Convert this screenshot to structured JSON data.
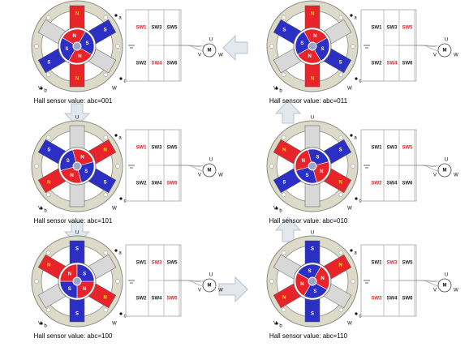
{
  "labels": {
    "phases": [
      "U",
      "V",
      "W"
    ],
    "halls": [
      "a",
      "b",
      "c"
    ],
    "motor": "M",
    "rotor": [
      "N",
      "S",
      "N",
      "S"
    ]
  },
  "panels": [
    {
      "caption": "Hall sensor value: abc=001",
      "teeth": [
        "N",
        "S",
        null,
        "N",
        "S",
        null
      ],
      "switches": [
        {
          "label": "SW1",
          "active": true
        },
        {
          "label": "SW3",
          "active": false
        },
        {
          "label": "SW5",
          "active": false
        },
        {
          "label": "SW2",
          "active": false
        },
        {
          "label": "SW4",
          "active": true
        },
        {
          "label": "SW6",
          "active": false
        }
      ]
    },
    {
      "caption": "Hall sensor value: abc=101",
      "teeth": [
        null,
        "N",
        "S",
        null,
        "N",
        "S"
      ],
      "switches": [
        {
          "label": "SW1",
          "active": true
        },
        {
          "label": "SW3",
          "active": false
        },
        {
          "label": "SW5",
          "active": false
        },
        {
          "label": "SW2",
          "active": false
        },
        {
          "label": "SW4",
          "active": false
        },
        {
          "label": "SW6",
          "active": true
        }
      ]
    },
    {
      "caption": "Hall sensor value: abc=100",
      "teeth": [
        "S",
        null,
        "N",
        "S",
        null,
        "N"
      ],
      "switches": [
        {
          "label": "SW1",
          "active": false
        },
        {
          "label": "SW3",
          "active": true
        },
        {
          "label": "SW5",
          "active": false
        },
        {
          "label": "SW2",
          "active": false
        },
        {
          "label": "SW4",
          "active": false
        },
        {
          "label": "SW6",
          "active": true
        }
      ]
    },
    {
      "caption": "Hall sensor value: abc=110",
      "teeth": [
        "S",
        "N",
        null,
        "S",
        "N",
        null
      ],
      "switches": [
        {
          "label": "SW1",
          "active": false
        },
        {
          "label": "SW3",
          "active": true
        },
        {
          "label": "SW5",
          "active": false
        },
        {
          "label": "SW2",
          "active": true
        },
        {
          "label": "SW4",
          "active": false
        },
        {
          "label": "SW6",
          "active": false
        }
      ]
    },
    {
      "caption": "Hall sensor value: abc=010",
      "teeth": [
        null,
        "S",
        "N",
        null,
        "S",
        "N"
      ],
      "switches": [
        {
          "label": "SW1",
          "active": false
        },
        {
          "label": "SW3",
          "active": false
        },
        {
          "label": "SW5",
          "active": true
        },
        {
          "label": "SW2",
          "active": true
        },
        {
          "label": "SW4",
          "active": false
        },
        {
          "label": "SW6",
          "active": false
        }
      ]
    },
    {
      "caption": "Hall sensor value: abc=011",
      "teeth": [
        "N",
        null,
        "S",
        "N",
        null,
        "S"
      ],
      "switches": [
        {
          "label": "SW1",
          "active": false
        },
        {
          "label": "SW3",
          "active": false
        },
        {
          "label": "SW5",
          "active": true
        },
        {
          "label": "SW2",
          "active": false
        },
        {
          "label": "SW4",
          "active": true
        },
        {
          "label": "SW6",
          "active": false
        }
      ]
    }
  ]
}
